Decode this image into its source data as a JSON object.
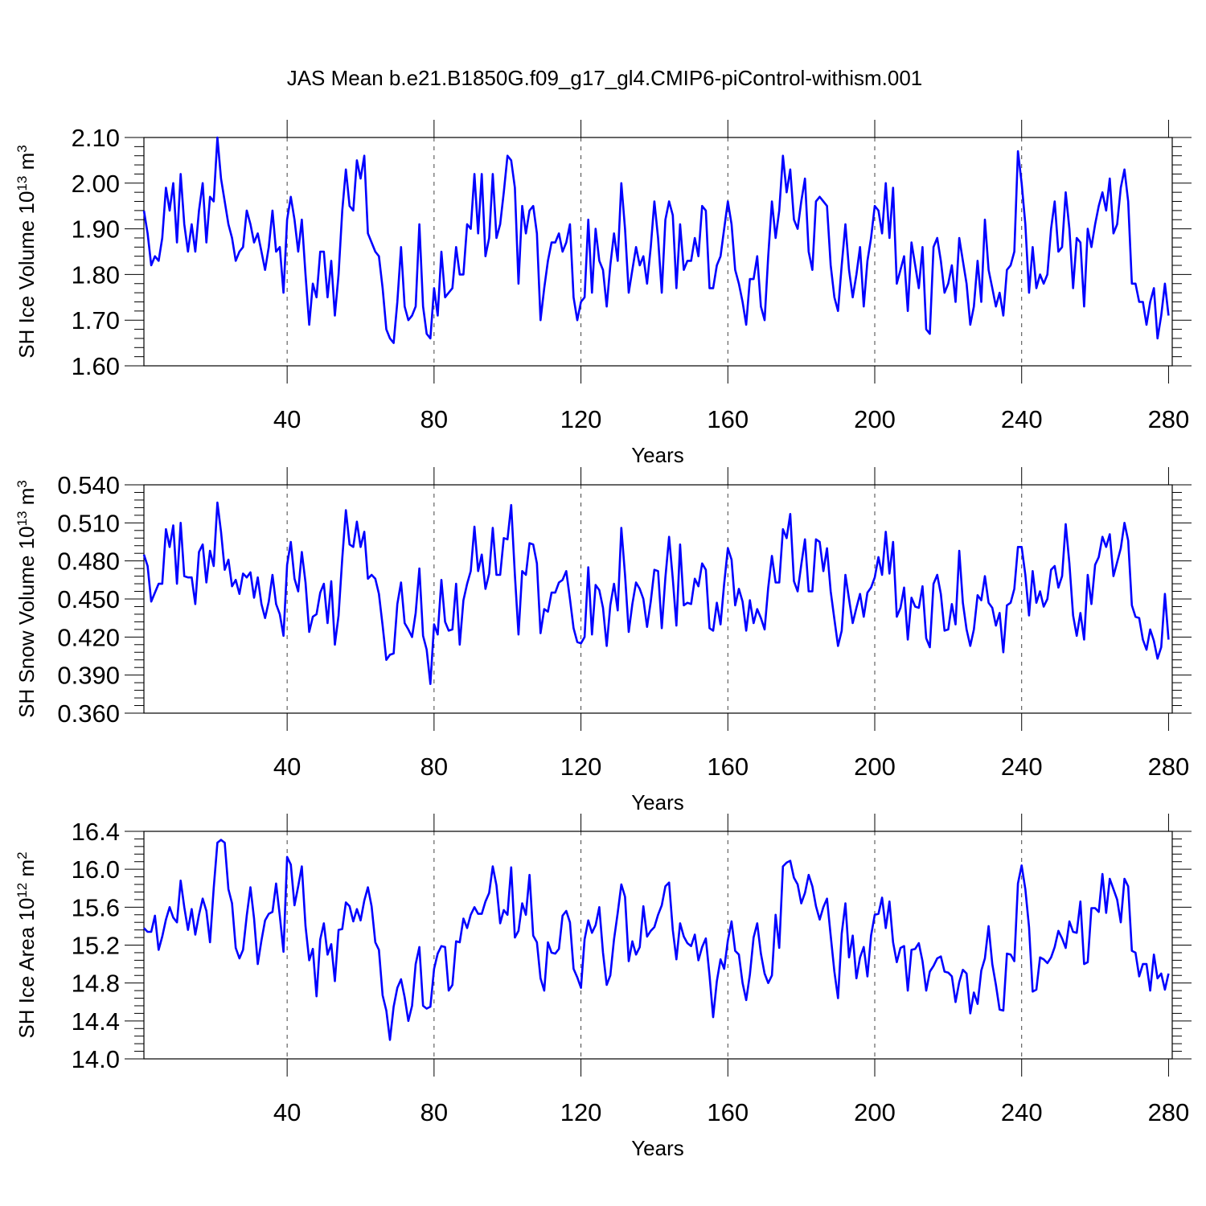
{
  "title": "JAS Mean b.e21.B1850G.f09_g17_gl4.CMIP6-piControl-withism.001",
  "colors": {
    "series": "#0000ff",
    "frame": "#000000",
    "grid": "#444444"
  },
  "chart_data": [
    {
      "type": "line",
      "xlabel": "Years",
      "ylabel": "SH Ice Volume 10<sup>13</sup> m<sup>3</sup>",
      "ylabel_parts": {
        "base": "SH Ice Volume 10",
        "exp": "13",
        "unit": " m",
        "unit_exp": "3"
      },
      "xlim": [
        1,
        281
      ],
      "ylim": [
        1.6,
        2.1
      ],
      "xticks": [
        40,
        80,
        120,
        160,
        200,
        240,
        280
      ],
      "yticks": [
        "1.60",
        "1.70",
        "1.80",
        "1.90",
        "2.00",
        "2.10"
      ],
      "vgrid_at": [
        40,
        80,
        120,
        160,
        200,
        240
      ],
      "series": [
        {
          "values": [
            1.94,
            1.89,
            1.82,
            1.84,
            1.83,
            1.88,
            1.99,
            1.94,
            2.0,
            1.87,
            2.02,
            1.91,
            1.85,
            1.91,
            1.85,
            1.94,
            2.0,
            1.87,
            1.97,
            1.96,
            2.1,
            2.01,
            1.96,
            1.91,
            1.88,
            1.83,
            1.85,
            1.86,
            1.94,
            1.91,
            1.87,
            1.89,
            1.85,
            1.81,
            1.86,
            1.94,
            1.85,
            1.86,
            1.76,
            1.92,
            1.97,
            1.92,
            1.85,
            1.92,
            1.8,
            1.69,
            1.78,
            1.75,
            1.85,
            1.85,
            1.75,
            1.83,
            1.71,
            1.8,
            1.94,
            2.03,
            1.95,
            1.94,
            2.05,
            2.01,
            2.06,
            1.89,
            1.87,
            1.85,
            1.84,
            1.77,
            1.68,
            1.66,
            1.65,
            1.74,
            1.86,
            1.73,
            1.7,
            1.71,
            1.73,
            1.91,
            1.73,
            1.67,
            1.66,
            1.77,
            1.71,
            1.85,
            1.75,
            1.76,
            1.77,
            1.86,
            1.8,
            1.8,
            1.91,
            1.9,
            2.02,
            1.89,
            2.02,
            1.84,
            1.88,
            2.02,
            1.88,
            1.91,
            1.98,
            2.06,
            2.05,
            1.99,
            1.78,
            1.95,
            1.89,
            1.94,
            1.95,
            1.89,
            1.7,
            1.77,
            1.83,
            1.87,
            1.87,
            1.89,
            1.85,
            1.87,
            1.91,
            1.75,
            1.7,
            1.74,
            1.75,
            1.92,
            1.76,
            1.9,
            1.83,
            1.81,
            1.73,
            1.82,
            1.89,
            1.83,
            2.0,
            1.9,
            1.76,
            1.81,
            1.86,
            1.82,
            1.84,
            1.78,
            1.86,
            1.96,
            1.88,
            1.76,
            1.92,
            1.96,
            1.93,
            1.77,
            1.91,
            1.81,
            1.83,
            1.83,
            1.88,
            1.84,
            1.95,
            1.94,
            1.77,
            1.77,
            1.82,
            1.84,
            1.9,
            1.96,
            1.91,
            1.81,
            1.78,
            1.74,
            1.69,
            1.79,
            1.79,
            1.84,
            1.73,
            1.7,
            1.84,
            1.96,
            1.88,
            1.94,
            2.06,
            1.98,
            2.03,
            1.92,
            1.9,
            1.96,
            2.01,
            1.85,
            1.81,
            1.96,
            1.97,
            1.96,
            1.95,
            1.82,
            1.75,
            1.72,
            1.82,
            1.91,
            1.81,
            1.75,
            1.8,
            1.86,
            1.73,
            1.83,
            1.88,
            1.95,
            1.94,
            1.89,
            2.0,
            1.88,
            1.99,
            1.78,
            1.81,
            1.84,
            1.72,
            1.87,
            1.82,
            1.77,
            1.86,
            1.68,
            1.67,
            1.86,
            1.88,
            1.83,
            1.76,
            1.78,
            1.82,
            1.74,
            1.88,
            1.83,
            1.78,
            1.69,
            1.73,
            1.83,
            1.74,
            1.92,
            1.81,
            1.77,
            1.73,
            1.76,
            1.71,
            1.81,
            1.82,
            1.85,
            2.07,
            2.0,
            1.91,
            1.76,
            1.86,
            1.77,
            1.8,
            1.78,
            1.8,
            1.9,
            1.96,
            1.85,
            1.86,
            1.98,
            1.9,
            1.77,
            1.88,
            1.87,
            1.73,
            1.9,
            1.86,
            1.91,
            1.95,
            1.98,
            1.94,
            2.01,
            1.89,
            1.91,
            1.99,
            2.03,
            1.96,
            1.78,
            1.78,
            1.74,
            1.74,
            1.69,
            1.74,
            1.77,
            1.66,
            1.71,
            1.78,
            1.71
          ]
        }
      ]
    },
    {
      "type": "line",
      "xlabel": "Years",
      "ylabel": "SH Snow Volume 10<sup>13</sup> m<sup>3</sup>",
      "ylabel_parts": {
        "base": "SH Snow Volume 10",
        "exp": "13",
        "unit": " m",
        "unit_exp": "3"
      },
      "xlim": [
        1,
        281
      ],
      "ylim": [
        0.36,
        0.54
      ],
      "xticks": [
        40,
        80,
        120,
        160,
        200,
        240,
        280
      ],
      "yticks": [
        "0.360",
        "0.390",
        "0.420",
        "0.450",
        "0.480",
        "0.510",
        "0.540"
      ],
      "vgrid_at": [
        40,
        80,
        120,
        160,
        200,
        240
      ],
      "series": [
        {
          "values": [
            0.485,
            0.476,
            0.448,
            0.455,
            0.462,
            0.462,
            0.505,
            0.491,
            0.508,
            0.462,
            0.51,
            0.468,
            0.467,
            0.467,
            0.446,
            0.487,
            0.493,
            0.463,
            0.488,
            0.476,
            0.526,
            0.503,
            0.473,
            0.481,
            0.46,
            0.465,
            0.454,
            0.47,
            0.467,
            0.471,
            0.451,
            0.467,
            0.446,
            0.435,
            0.448,
            0.469,
            0.446,
            0.438,
            0.421,
            0.477,
            0.495,
            0.466,
            0.456,
            0.487,
            0.463,
            0.424,
            0.436,
            0.438,
            0.455,
            0.462,
            0.431,
            0.464,
            0.414,
            0.437,
            0.482,
            0.52,
            0.493,
            0.491,
            0.511,
            0.491,
            0.503,
            0.466,
            0.469,
            0.466,
            0.454,
            0.429,
            0.402,
            0.406,
            0.407,
            0.446,
            0.463,
            0.431,
            0.426,
            0.42,
            0.439,
            0.474,
            0.421,
            0.41,
            0.383,
            0.43,
            0.422,
            0.465,
            0.432,
            0.425,
            0.426,
            0.462,
            0.414,
            0.449,
            0.462,
            0.472,
            0.507,
            0.472,
            0.485,
            0.458,
            0.47,
            0.506,
            0.469,
            0.469,
            0.498,
            0.497,
            0.524,
            0.469,
            0.422,
            0.472,
            0.469,
            0.494,
            0.493,
            0.478,
            0.423,
            0.442,
            0.44,
            0.455,
            0.455,
            0.463,
            0.465,
            0.472,
            0.45,
            0.427,
            0.416,
            0.415,
            0.42,
            0.475,
            0.422,
            0.461,
            0.457,
            0.443,
            0.413,
            0.445,
            0.462,
            0.441,
            0.506,
            0.469,
            0.424,
            0.446,
            0.463,
            0.458,
            0.45,
            0.428,
            0.448,
            0.473,
            0.472,
            0.427,
            0.467,
            0.499,
            0.466,
            0.429,
            0.493,
            0.445,
            0.447,
            0.446,
            0.466,
            0.46,
            0.478,
            0.473,
            0.427,
            0.425,
            0.447,
            0.43,
            0.462,
            0.49,
            0.481,
            0.445,
            0.458,
            0.448,
            0.425,
            0.449,
            0.431,
            0.442,
            0.435,
            0.426,
            0.459,
            0.484,
            0.463,
            0.463,
            0.505,
            0.498,
            0.517,
            0.464,
            0.456,
            0.477,
            0.497,
            0.456,
            0.456,
            0.497,
            0.495,
            0.472,
            0.49,
            0.456,
            0.434,
            0.413,
            0.425,
            0.469,
            0.45,
            0.431,
            0.443,
            0.454,
            0.436,
            0.455,
            0.459,
            0.467,
            0.483,
            0.469,
            0.503,
            0.47,
            0.495,
            0.436,
            0.443,
            0.459,
            0.418,
            0.451,
            0.444,
            0.443,
            0.46,
            0.419,
            0.412,
            0.462,
            0.469,
            0.454,
            0.425,
            0.426,
            0.446,
            0.43,
            0.488,
            0.447,
            0.426,
            0.413,
            0.426,
            0.453,
            0.449,
            0.468,
            0.447,
            0.443,
            0.429,
            0.439,
            0.408,
            0.445,
            0.447,
            0.458,
            0.491,
            0.491,
            0.469,
            0.437,
            0.472,
            0.447,
            0.456,
            0.444,
            0.45,
            0.473,
            0.476,
            0.459,
            0.468,
            0.509,
            0.478,
            0.437,
            0.421,
            0.439,
            0.418,
            0.469,
            0.446,
            0.477,
            0.483,
            0.499,
            0.491,
            0.501,
            0.468,
            0.479,
            0.49,
            0.51,
            0.496,
            0.445,
            0.436,
            0.435,
            0.418,
            0.41,
            0.426,
            0.417,
            0.403,
            0.412,
            0.454,
            0.418
          ]
        }
      ]
    },
    {
      "type": "line",
      "xlabel": "Years",
      "ylabel": "SH Ice Area 10<sup>12</sup> m<sup>2</sup>",
      "ylabel_parts": {
        "base": "SH Ice Area 10",
        "exp": "12",
        "unit": " m",
        "unit_exp": "2"
      },
      "xlim": [
        1,
        281
      ],
      "ylim": [
        14.0,
        16.4
      ],
      "xticks": [
        40,
        80,
        120,
        160,
        200,
        240,
        280
      ],
      "yticks": [
        "14.0",
        "14.4",
        "14.8",
        "15.2",
        "15.6",
        "16.0",
        "16.4"
      ],
      "vgrid_at": [
        40,
        80,
        120,
        160,
        200,
        240
      ],
      "series": [
        {
          "values": [
            15.38,
            15.34,
            15.34,
            15.51,
            15.15,
            15.29,
            15.47,
            15.6,
            15.49,
            15.44,
            15.88,
            15.6,
            15.36,
            15.58,
            15.31,
            15.52,
            15.69,
            15.56,
            15.23,
            15.8,
            16.28,
            16.31,
            16.28,
            15.79,
            15.64,
            15.17,
            15.06,
            15.15,
            15.51,
            15.81,
            15.48,
            15.0,
            15.25,
            15.46,
            15.53,
            15.55,
            15.85,
            15.51,
            15.13,
            16.13,
            16.05,
            15.62,
            15.82,
            16.03,
            15.4,
            15.04,
            15.16,
            14.66,
            15.26,
            15.43,
            15.1,
            15.21,
            14.82,
            15.36,
            15.37,
            15.65,
            15.61,
            15.45,
            15.58,
            15.46,
            15.67,
            15.81,
            15.61,
            15.23,
            15.15,
            14.67,
            14.51,
            14.2,
            14.55,
            14.75,
            14.84,
            14.65,
            14.4,
            14.56,
            15.0,
            15.18,
            14.56,
            14.53,
            14.55,
            14.95,
            15.11,
            15.19,
            15.18,
            14.72,
            14.78,
            15.24,
            15.23,
            15.48,
            15.38,
            15.52,
            15.6,
            15.53,
            15.53,
            15.66,
            15.75,
            16.03,
            15.83,
            15.43,
            15.57,
            15.52,
            16.02,
            15.28,
            15.35,
            15.64,
            15.52,
            15.94,
            15.3,
            15.23,
            14.85,
            14.72,
            15.23,
            15.12,
            15.11,
            15.16,
            15.51,
            15.56,
            15.44,
            14.95,
            14.86,
            14.75,
            15.26,
            15.46,
            15.33,
            15.41,
            15.6,
            15.12,
            14.78,
            14.88,
            15.26,
            15.54,
            15.84,
            15.71,
            15.03,
            15.24,
            15.1,
            15.18,
            15.61,
            15.29,
            15.35,
            15.39,
            15.52,
            15.62,
            15.82,
            15.86,
            15.36,
            15.05,
            15.43,
            15.29,
            15.22,
            15.19,
            15.31,
            15.04,
            15.18,
            15.27,
            14.88,
            14.44,
            14.82,
            15.05,
            14.95,
            15.25,
            15.45,
            15.14,
            15.1,
            14.8,
            14.62,
            14.89,
            15.28,
            15.43,
            15.11,
            14.9,
            14.8,
            14.88,
            15.52,
            15.17,
            16.03,
            16.07,
            16.09,
            15.91,
            15.84,
            15.64,
            15.75,
            15.94,
            15.82,
            15.61,
            15.47,
            15.6,
            15.69,
            15.3,
            14.92,
            14.64,
            15.32,
            15.64,
            15.07,
            15.3,
            14.85,
            15.07,
            15.18,
            14.87,
            15.3,
            15.52,
            15.53,
            15.7,
            15.38,
            15.66,
            15.23,
            15.02,
            15.17,
            15.19,
            14.72,
            15.15,
            15.16,
            15.22,
            15.03,
            14.72,
            14.92,
            14.98,
            15.06,
            15.08,
            14.92,
            14.91,
            14.87,
            14.6,
            14.81,
            14.94,
            14.9,
            14.48,
            14.7,
            14.58,
            14.93,
            15.06,
            15.4,
            15.0,
            14.78,
            14.52,
            14.51,
            15.11,
            15.1,
            15.03,
            15.85,
            16.04,
            15.79,
            15.39,
            14.71,
            14.73,
            15.07,
            15.05,
            15.01,
            15.07,
            15.18,
            15.35,
            15.27,
            15.17,
            15.45,
            15.34,
            15.33,
            15.66,
            15.0,
            15.02,
            15.59,
            15.59,
            15.55,
            15.95,
            15.54,
            15.9,
            15.79,
            15.68,
            15.44,
            15.9,
            15.82,
            15.14,
            15.12,
            14.87,
            15.0,
            15.0,
            14.72,
            15.1,
            14.85,
            14.9,
            14.73,
            14.9
          ]
        }
      ]
    }
  ]
}
